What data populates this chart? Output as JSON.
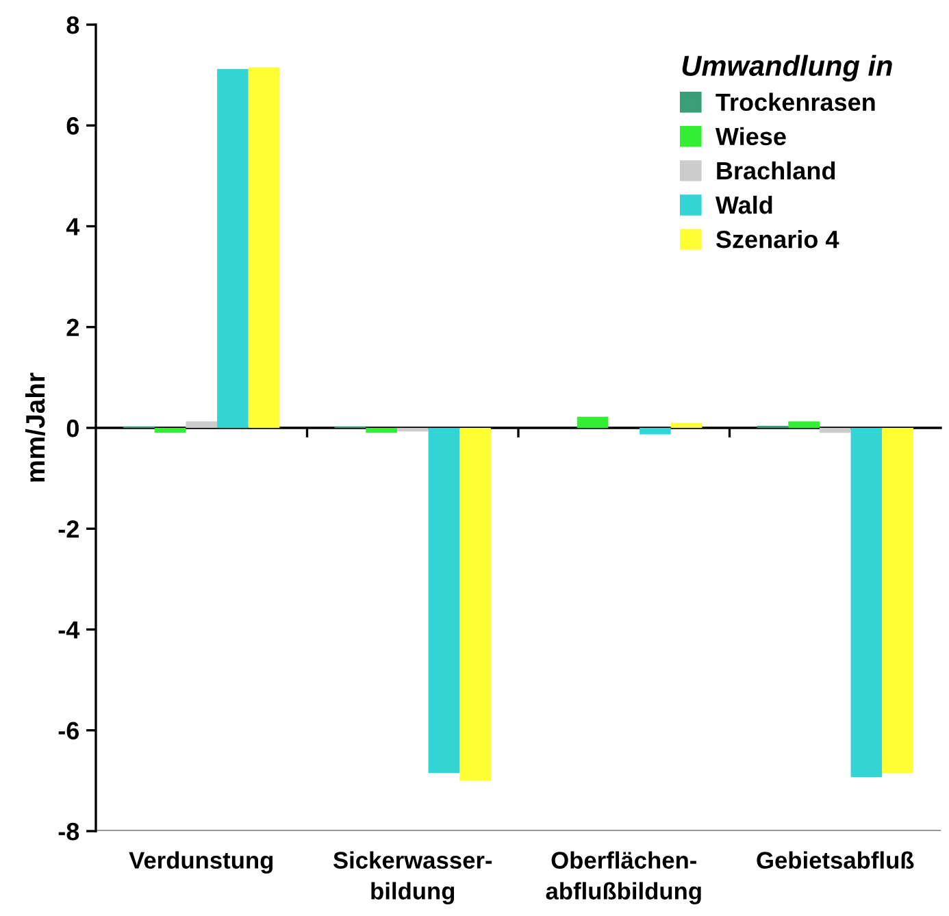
{
  "chart_data": {
    "type": "bar",
    "ylabel": "mm/Jahr",
    "legend_title": "Umwandlung in",
    "categories": [
      "Verdunstung",
      "Sickerwasser-\nbildung",
      "Oberflächen-\nabflußbildung",
      "Gebietsabfluß"
    ],
    "series": [
      {
        "name": "Trockenrasen",
        "color": "#3a9e78",
        "values": [
          0.03,
          0.03,
          0,
          0.04
        ]
      },
      {
        "name": "Wiese",
        "color": "#33ee33",
        "values": [
          -0.1,
          -0.1,
          0.22,
          0.13
        ]
      },
      {
        "name": "Brachland",
        "color": "#cccccc",
        "values": [
          0.13,
          -0.07,
          0,
          -0.1
        ]
      },
      {
        "name": "Wald",
        "color": "#33d4d4",
        "values": [
          7.12,
          -6.85,
          -0.13,
          -6.93
        ]
      },
      {
        "name": "Szenario 4",
        "color": "#ffff33",
        "values": [
          7.15,
          -7.0,
          0.1,
          -6.85
        ]
      }
    ],
    "ylim": [
      -8,
      8
    ],
    "yticks": [
      -8,
      -6,
      -4,
      -2,
      0,
      2,
      4,
      6,
      8
    ],
    "legend": "top right"
  }
}
